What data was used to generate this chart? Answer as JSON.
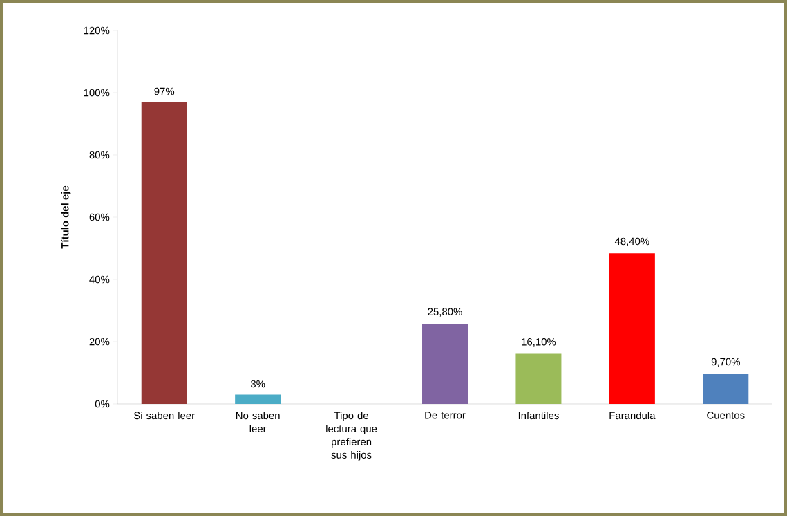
{
  "chart_data": {
    "type": "bar",
    "ylabel": "Título del eje",
    "categories": [
      "Si saben leer",
      "No saben leer",
      "Tipo de lectura que prefieren sus hijos",
      "De terror",
      "Infantiles",
      "Farandula",
      "Cuentos"
    ],
    "values": [
      97,
      3,
      null,
      25.8,
      16.1,
      48.4,
      9.7
    ],
    "colors": [
      "#953735",
      "#4bacc6",
      null,
      "#8064a2",
      "#9bbb59",
      "#ff0000",
      "#4f81bd"
    ],
    "value_labels": [
      "97%",
      "3%",
      null,
      "25,80%",
      "16,10%",
      "48,40%",
      "9,70%"
    ],
    "ylim": [
      0,
      120
    ],
    "yticks": [
      {
        "value": 0,
        "label": "0%"
      },
      {
        "value": 20,
        "label": "20%"
      },
      {
        "value": 40,
        "label": "40%"
      },
      {
        "value": 60,
        "label": "60%"
      },
      {
        "value": 80,
        "label": "80%"
      },
      {
        "value": 100,
        "label": "100%"
      },
      {
        "value": 120,
        "label": "120%"
      }
    ],
    "grid": false
  }
}
